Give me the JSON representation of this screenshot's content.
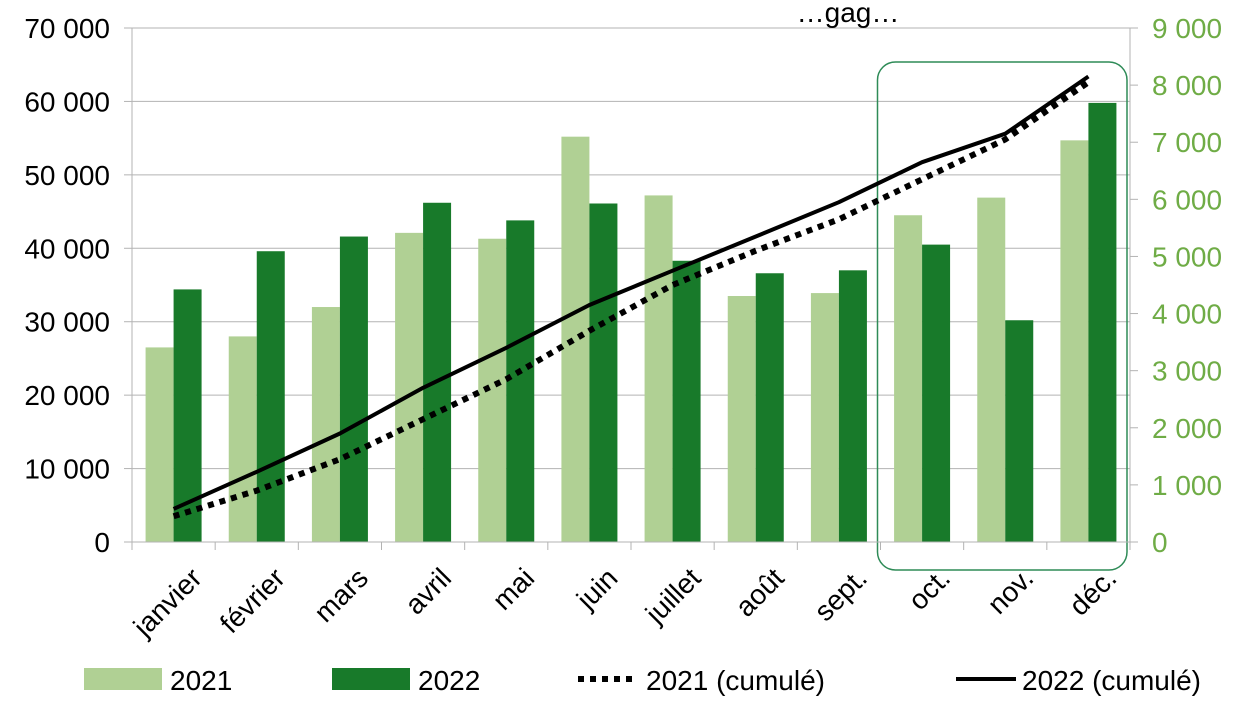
{
  "chart_data": {
    "type": "bar",
    "title": "…gag…",
    "categories": [
      "janvier",
      "février",
      "mars",
      "avril",
      "mai",
      "juin",
      "juillet",
      "août",
      "sept.",
      "oct.",
      "nov.",
      "déc."
    ],
    "series": [
      {
        "name": "2021",
        "kind": "bar",
        "axis": "left",
        "color": "#b0d094",
        "values": [
          26500,
          28000,
          32000,
          42100,
          41300,
          55200,
          47200,
          33500,
          33900,
          44500,
          46900,
          54700
        ]
      },
      {
        "name": "2022",
        "kind": "bar",
        "axis": "left",
        "color": "#187a2a",
        "values": [
          34400,
          39600,
          41600,
          46200,
          43800,
          46100,
          38300,
          36600,
          37000,
          40500,
          30200,
          59800
        ]
      },
      {
        "name": "2021 (cumulé)",
        "kind": "line",
        "axis": "right",
        "style": "dotted",
        "color": "#000000",
        "values": [
          450,
          900,
          1450,
          2150,
          2850,
          3700,
          4500,
          5100,
          5650,
          6350,
          7050,
          8050
        ]
      },
      {
        "name": "2022 (cumulé)",
        "kind": "line",
        "axis": "right",
        "style": "solid",
        "color": "#000000",
        "values": [
          580,
          1230,
          1900,
          2700,
          3400,
          4150,
          4750,
          5350,
          5950,
          6650,
          7150,
          8150
        ]
      }
    ],
    "y_left": {
      "ylim": [
        0,
        70000
      ],
      "ticks": [
        0,
        10000,
        20000,
        30000,
        40000,
        50000,
        60000,
        70000
      ],
      "tick_labels": [
        "0",
        "10 000",
        "20 000",
        "30 000",
        "40 000",
        "50 000",
        "60 000",
        "70 000"
      ],
      "color": "#000000"
    },
    "y_right": {
      "ylim": [
        0,
        9000
      ],
      "ticks": [
        0,
        1000,
        2000,
        3000,
        4000,
        5000,
        6000,
        7000,
        8000,
        9000
      ],
      "tick_labels": [
        "0",
        "1 000",
        "2 000",
        "3 000",
        "4 000",
        "5 000",
        "6 000",
        "7 000",
        "8 000",
        "9 000"
      ],
      "color": "#6fac46"
    },
    "grid": true,
    "legend_position": "bottom",
    "highlight": {
      "from_category": "oct.",
      "to_category": "déc.",
      "color": "#2e8b57"
    }
  }
}
